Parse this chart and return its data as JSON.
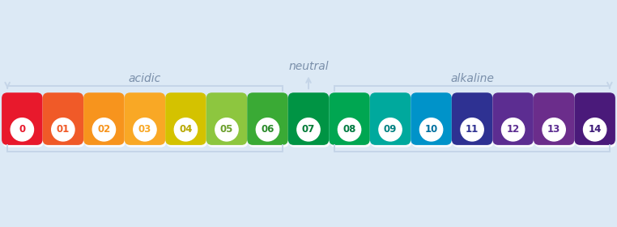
{
  "background_color": "#dce9f5",
  "ph_colors": [
    "#e8192c",
    "#f05a28",
    "#f7941d",
    "#f9a825",
    "#d4c200",
    "#8dc63f",
    "#3aaa35",
    "#009444",
    "#00a651",
    "#00a99d",
    "#0093c9",
    "#2e3192",
    "#5c2d91",
    "#6b2d8b",
    "#4a1a7a"
  ],
  "ph_labels": [
    "0",
    "01",
    "02",
    "03",
    "04",
    "05",
    "06",
    "07",
    "08",
    "09",
    "10",
    "11",
    "12",
    "13",
    "14"
  ],
  "label_colors": [
    "#e8192c",
    "#f05a28",
    "#f7941d",
    "#f9a825",
    "#b8a800",
    "#6a9e2a",
    "#2a8a2a",
    "#007a35",
    "#007a40",
    "#008080",
    "#0070a0",
    "#2e3192",
    "#5c2d91",
    "#5c2d91",
    "#3d1a78"
  ],
  "acidic_label": "acidic",
  "neutral_label": "neutral",
  "alkaline_label": "alkaline",
  "text_color": "#7a8faa",
  "bracket_color": "#c5d5e8",
  "label_fontsize": 10,
  "number_fontsize": 8.5
}
